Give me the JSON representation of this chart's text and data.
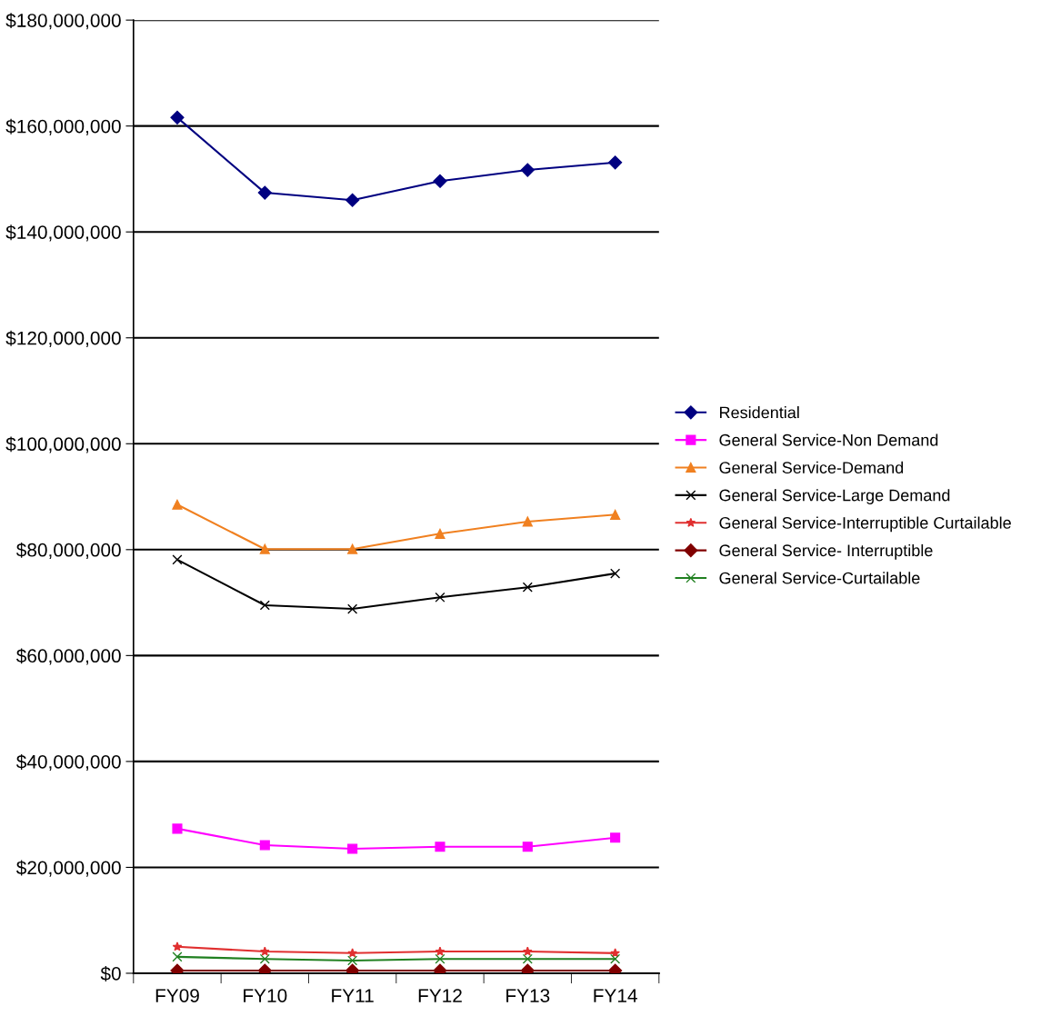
{
  "chart_data": {
    "type": "line",
    "categories": [
      "FY09",
      "FY10",
      "FY11",
      "FY12",
      "FY13",
      "FY14"
    ],
    "series": [
      {
        "name": "Residential",
        "color": "#000080",
        "marker": "diamond",
        "values": [
          161600000,
          147400000,
          146000000,
          149600000,
          151700000,
          153100000
        ]
      },
      {
        "name": "General Service-Non Demand",
        "color": "#ff00ff",
        "marker": "square",
        "values": [
          27300000,
          24200000,
          23500000,
          23900000,
          23900000,
          25600000
        ]
      },
      {
        "name": "General Service-Demand",
        "color": "#f08020",
        "marker": "triangle",
        "values": [
          88500000,
          80100000,
          80100000,
          83000000,
          85300000,
          86600000
        ]
      },
      {
        "name": "General Service-Large Demand",
        "color": "#000000",
        "marker": "cross",
        "values": [
          78100000,
          69500000,
          68800000,
          71000000,
          72900000,
          75500000
        ]
      },
      {
        "name": "General Service-Interruptible Curtailable",
        "color": "#e03030",
        "marker": "star",
        "values": [
          5000000,
          4100000,
          3800000,
          4100000,
          4100000,
          3800000
        ]
      },
      {
        "name": "General Service- Interruptible",
        "color": "#800000",
        "marker": "diamond",
        "values": [
          500000,
          500000,
          500000,
          500000,
          500000,
          500000
        ]
      },
      {
        "name": "General Service-Curtailable",
        "color": "#208020",
        "marker": "cross",
        "values": [
          3100000,
          2700000,
          2400000,
          2700000,
          2700000,
          2700000
        ]
      }
    ],
    "ylim": [
      0,
      180000000
    ],
    "yticks": [
      {
        "value": 0,
        "label": "$0"
      },
      {
        "value": 20000000,
        "label": "$20,000,000"
      },
      {
        "value": 40000000,
        "label": "$40,000,000"
      },
      {
        "value": 60000000,
        "label": "$60,000,000"
      },
      {
        "value": 80000000,
        "label": "$80,000,000"
      },
      {
        "value": 100000000,
        "label": "$100,000,000"
      },
      {
        "value": 120000000,
        "label": "$120,000,000"
      },
      {
        "value": 140000000,
        "label": "$140,000,000"
      },
      {
        "value": 160000000,
        "label": "$160,000,000"
      },
      {
        "value": 180000000,
        "label": "$180,000,000"
      }
    ],
    "grid": "y",
    "legend": "right",
    "line_style": "solid"
  }
}
